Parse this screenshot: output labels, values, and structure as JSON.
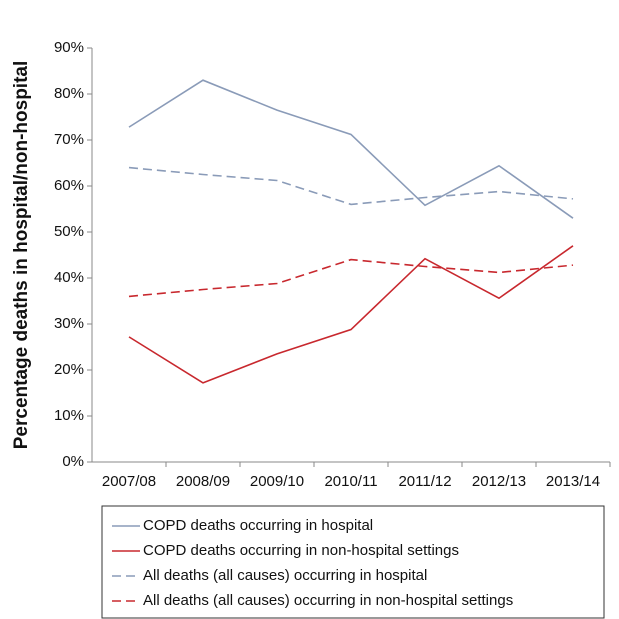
{
  "chart_data": {
    "type": "line",
    "y_label": "Percentage deaths in hospital/non-hospital",
    "categories": [
      "2007/08",
      "2008/09",
      "2009/10",
      "2010/11",
      "2011/12",
      "2012/13",
      "2013/14"
    ],
    "series": [
      {
        "name": "COPD deaths occurring in hospital",
        "color": "#8a9bb8",
        "line_style": "solid",
        "values": [
          72.8,
          83,
          76.5,
          71.2,
          55.8,
          64.4,
          53
        ]
      },
      {
        "name": "COPD deaths occurring in non-hospital settings",
        "color": "#c8282e",
        "line_style": "solid",
        "values": [
          27.2,
          17.2,
          23.5,
          28.8,
          44.2,
          35.6,
          47
        ]
      },
      {
        "name": "All deaths (all causes) occurring in hospital",
        "color": "#8a9bb8",
        "line_style": "dashed",
        "values": [
          64,
          62.5,
          61.2,
          56,
          57.5,
          58.8,
          57.2
        ]
      },
      {
        "name": "All deaths (all causes) occurring in non-hospital settings",
        "color": "#c8282e",
        "line_style": "dashed",
        "values": [
          36,
          37.5,
          38.8,
          44,
          42.5,
          41.2,
          42.8
        ]
      }
    ],
    "ylim": [
      0,
      90
    ],
    "yticks": [
      {
        "value": 0,
        "label": "0%"
      },
      {
        "value": 10,
        "label": "10%"
      },
      {
        "value": 20,
        "label": "20%"
      },
      {
        "value": 30,
        "label": "30%"
      },
      {
        "value": 40,
        "label": "40%"
      },
      {
        "value": 50,
        "label": "50%"
      },
      {
        "value": 60,
        "label": "60%"
      },
      {
        "value": 70,
        "label": "70%"
      },
      {
        "value": 80,
        "label": "80%"
      },
      {
        "value": 90,
        "label": "90%"
      }
    ],
    "grid": false,
    "legend": "bottom"
  }
}
